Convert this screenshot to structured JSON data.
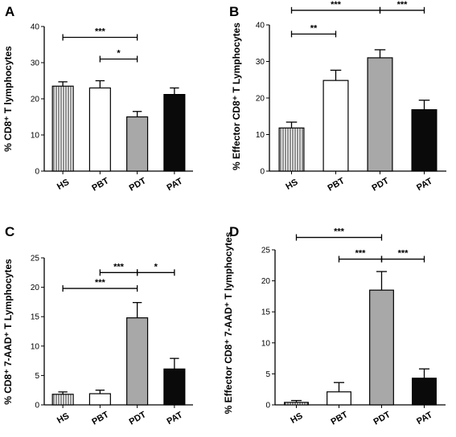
{
  "chart_data": [
    {
      "type": "bar",
      "panel": "A",
      "ylabel": "% CD8⁺ T lymphocytes",
      "ylim": [
        0,
        40
      ],
      "yticks": [
        0,
        10,
        20,
        30,
        40
      ],
      "categories": [
        "HS",
        "PBT",
        "PDT",
        "PAT"
      ],
      "values": [
        23.5,
        23.0,
        15.0,
        21.2
      ],
      "errors": [
        1.2,
        2.0,
        1.5,
        1.8
      ],
      "fills": [
        "hatch",
        "white",
        "gray",
        "black"
      ],
      "significance": [
        {
          "from": 0,
          "to": 2,
          "level": 37,
          "label": "***"
        },
        {
          "from": 1,
          "to": 2,
          "level": 31,
          "label": "*"
        }
      ]
    },
    {
      "type": "bar",
      "panel": "B",
      "ylabel": "% Effector CD8⁺ T Lymphocytes",
      "ylim": [
        0,
        40
      ],
      "yticks": [
        0,
        10,
        20,
        30,
        40
      ],
      "categories": [
        "HS",
        "PBT",
        "PDT",
        "PAT"
      ],
      "values": [
        11.8,
        24.8,
        31.0,
        16.8
      ],
      "errors": [
        1.6,
        2.8,
        2.2,
        2.6
      ],
      "fills": [
        "hatch",
        "white",
        "gray",
        "black"
      ],
      "significance": [
        {
          "from": 0,
          "to": 1,
          "level": 37.5,
          "label": "**"
        },
        {
          "from": 0,
          "to": 2,
          "level": 44,
          "label": "***"
        },
        {
          "from": 2,
          "to": 3,
          "level": 44,
          "label": "***"
        }
      ]
    },
    {
      "type": "bar",
      "panel": "C",
      "ylabel": "% CD8⁺ 7-AAD⁺ T Lymphocytes",
      "ylim": [
        0,
        25
      ],
      "yticks": [
        0,
        5,
        10,
        15,
        20,
        25
      ],
      "categories": [
        "HS",
        "PBT",
        "PDT",
        "PAT"
      ],
      "values": [
        1.8,
        1.9,
        14.8,
        6.1
      ],
      "errors": [
        0.4,
        0.6,
        2.6,
        1.8
      ],
      "fills": [
        "hatch",
        "white",
        "gray",
        "black"
      ],
      "significance": [
        {
          "from": 1,
          "to": 2,
          "level": 22.5,
          "label": "***"
        },
        {
          "from": 2,
          "to": 3,
          "level": 22.5,
          "label": "*"
        },
        {
          "from": 0,
          "to": 2,
          "level": 19.8,
          "label": "***"
        }
      ]
    },
    {
      "type": "bar",
      "panel": "D",
      "ylabel": "% Effector CD8⁺ 7-AAD⁺ T lymphocytes",
      "ylim": [
        0,
        25
      ],
      "yticks": [
        0,
        5,
        10,
        15,
        20,
        25
      ],
      "categories": [
        "HS",
        "PBT",
        "PDT",
        "PAT"
      ],
      "values": [
        0.4,
        2.1,
        18.5,
        4.3
      ],
      "errors": [
        0.3,
        1.5,
        3.0,
        1.5
      ],
      "fills": [
        "hatch",
        "white",
        "gray",
        "black"
      ],
      "significance": [
        {
          "from": 0,
          "to": 2,
          "level": 27,
          "label": "***"
        },
        {
          "from": 1,
          "to": 2,
          "level": 23.5,
          "label": "***"
        },
        {
          "from": 2,
          "to": 3,
          "level": 23.5,
          "label": "***"
        }
      ]
    }
  ]
}
